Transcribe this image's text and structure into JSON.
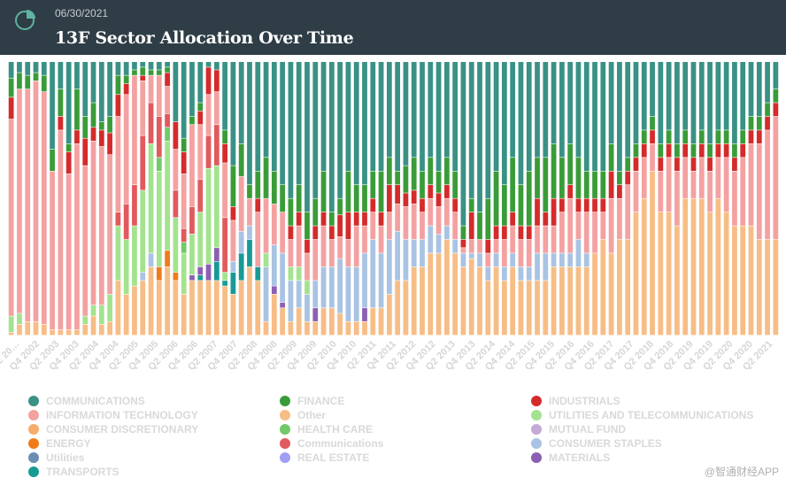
{
  "header": {
    "date": "06/30/2021",
    "title": "13F Sector Allocation Over Time"
  },
  "watermark": "@智通财经APP",
  "chart_data": {
    "type": "bar",
    "stacked": true,
    "normalized": true,
    "title": "13F Sector Allocation Over Time",
    "x_tick_labels": [
      "Q2 20…",
      "Q4 2002",
      "Q2 2003",
      "Q4 2003",
      "Q2 2004",
      "Q4 2004",
      "Q2 2005",
      "Q4 2005",
      "Q2 2006",
      "Q4 2006",
      "Q2 2007",
      "Q4 2007",
      "Q2 2008",
      "Q4 2008",
      "Q2 2009",
      "Q4 2009",
      "Q2 2010",
      "Q4 2010",
      "Q2 2011",
      "Q4 2011",
      "Q2 2012",
      "Q4 2012",
      "Q2 2013",
      "Q4 2013",
      "Q2 2014",
      "Q4 2014",
      "Q2 2015",
      "Q4 2015",
      "Q2 2016",
      "Q4 2016",
      "Q2 2017",
      "Q4 2017",
      "Q2 2018",
      "Q4 2018",
      "Q2 2019",
      "Q4 2019",
      "Q2 2020",
      "Q4 2020",
      "Q2 2021"
    ],
    "series_order": [
      "other",
      "energy",
      "transports",
      "materials",
      "real_estate",
      "consumer_staples",
      "utilities_tel",
      "health",
      "comms_red",
      "info_tech",
      "industrials",
      "finance",
      "communications"
    ],
    "series": [
      {
        "key": "communications",
        "name": "COMMUNICATIONS",
        "color": "#3a9185"
      },
      {
        "key": "finance",
        "name": "FINANCE",
        "color": "#3a9c38"
      },
      {
        "key": "industrials",
        "name": "INDUSTRIALS",
        "color": "#d42b2b"
      },
      {
        "key": "info_tech",
        "name": "INFORMATION TECHNOLOGY",
        "color": "#f4a1a1"
      },
      {
        "key": "other",
        "name": "Other",
        "color": "#f7bd86"
      },
      {
        "key": "utilities_tel",
        "name": "UTILITIES AND TELECOMMUNICATIONS",
        "color": "#a3e38f"
      },
      {
        "key": "consumer_discretionary",
        "name": "CONSUMER DISCRETIONARY",
        "color": "#f5ae6a"
      },
      {
        "key": "health",
        "name": "HEALTH CARE",
        "color": "#72c96a"
      },
      {
        "key": "mutual_fund",
        "name": "MUTUAL FUND",
        "color": "#c5a9d6"
      },
      {
        "key": "energy",
        "name": "ENERGY",
        "color": "#ef7c1a"
      },
      {
        "key": "comms_red",
        "name": "Communications",
        "color": "#e05a5e"
      },
      {
        "key": "consumer_staples",
        "name": "CONSUMER STAPLES",
        "color": "#a9c3e3"
      },
      {
        "key": "utilities",
        "name": "Utilities",
        "color": "#6b8eb3"
      },
      {
        "key": "real_estate",
        "name": "REAL ESTATE",
        "color": "#a09ef5"
      },
      {
        "key": "materials",
        "name": "MATERIALS",
        "color": "#8c5fb3"
      },
      {
        "key": "transports",
        "name": "TRANSPORTS",
        "color": "#179a96"
      }
    ],
    "bars": [
      {
        "communications": 6,
        "finance": 7,
        "industrials": 8,
        "info_tech": 72,
        "other": 1,
        "utilities_tel": 6
      },
      {
        "communications": 4,
        "finance": 6,
        "info_tech": 82,
        "other": 4,
        "utilities_tel": 4
      },
      {
        "communications": 5,
        "finance": 5,
        "info_tech": 85,
        "other": 5
      },
      {
        "communications": 4,
        "finance": 3,
        "info_tech": 88,
        "other": 5
      },
      {
        "communications": 5,
        "finance": 6,
        "info_tech": 85,
        "other": 4
      },
      {
        "communications": 32,
        "finance": 8,
        "info_tech": 58,
        "other": 2
      },
      {
        "communications": 10,
        "finance": 10,
        "industrials": 5,
        "info_tech": 73,
        "other": 2
      },
      {
        "communications": 30,
        "finance": 3,
        "industrials": 8,
        "info_tech": 57,
        "other": 2
      },
      {
        "communications": 10,
        "finance": 15,
        "industrials": 5,
        "info_tech": 68,
        "other": 2
      },
      {
        "communications": 20,
        "finance": 8,
        "industrials": 10,
        "info_tech": 55,
        "other": 4,
        "utilities_tel": 3
      },
      {
        "communications": 15,
        "finance": 9,
        "industrials": 5,
        "info_tech": 60,
        "other": 7,
        "utilities_tel": 4
      },
      {
        "communications": 22,
        "finance": 3,
        "industrials": 6,
        "info_tech": 58,
        "other": 4,
        "utilities_tel": 7
      },
      {
        "communications": 20,
        "finance": 6,
        "industrials": 8,
        "info_tech": 51,
        "other": 5,
        "utilities_tel": 10
      },
      {
        "communications": 5,
        "finance": 7,
        "industrials": 8,
        "info_tech": 35,
        "other": 20,
        "utilities_tel": 20,
        "comms_red": 5
      },
      {
        "communications": 5,
        "finance": 3,
        "industrials": 4,
        "info_tech": 40,
        "other": 15,
        "utilities_tel": 20,
        "comms_red": 13
      },
      {
        "communications": 3,
        "finance": 2,
        "info_tech": 40,
        "other": 18,
        "utilities_tel": 22,
        "comms_red": 15
      },
      {
        "communications": 2,
        "finance": 3,
        "industrials": 2,
        "info_tech": 20,
        "other": 20,
        "utilities_tel": 30,
        "comms_red": 20,
        "consumer_staples": 3
      },
      {
        "communications": 3,
        "finance": 2,
        "info_tech": 10,
        "other": 25,
        "utilities_tel": 40,
        "comms_red": 15,
        "consumer_staples": 5
      },
      {
        "communications": 3,
        "finance": 2,
        "info_tech": 15,
        "other": 20,
        "utilities_tel": 35,
        "health": 5,
        "comms_red": 15,
        "energy": 5
      },
      {
        "communications": 2,
        "finance": 2,
        "industrials": 5,
        "info_tech": 10,
        "other": 25,
        "utilities_tel": 40,
        "health": 5,
        "comms_red": 5,
        "energy": 6
      },
      {
        "communications": 22,
        "industrials": 10,
        "info_tech": 15,
        "other": 20,
        "utilities_tel": 20,
        "comms_red": 10,
        "energy": 3
      },
      {
        "communications": 28,
        "finance": 5,
        "industrials": 8,
        "info_tech": 20,
        "other": 15,
        "utilities_tel": 15,
        "health": 4,
        "comms_red": 5
      },
      {
        "communications": 20,
        "finance": 3,
        "info_tech": 30,
        "other": 20,
        "utilities_tel": 15,
        "comms_red": 10,
        "materials": 2
      },
      {
        "communications": 15,
        "finance": 3,
        "industrials": 5,
        "info_tech": 20,
        "other": 20,
        "utilities_tel": 20,
        "comms_red": 12,
        "materials": 3,
        "transports": 2
      },
      {
        "communications": 2,
        "industrials": 10,
        "info_tech": 15,
        "other": 20,
        "utilities_tel": 35,
        "comms_red": 12,
        "materials": 6
      },
      {
        "communications": 3,
        "industrials": 8,
        "info_tech": 12,
        "other": 20,
        "utilities_tel": 30,
        "comms_red": 15,
        "transports": 7,
        "materials": 5
      },
      {
        "communications": 25,
        "finance": 5,
        "industrials": 7,
        "info_tech": 20,
        "other": 18,
        "utilities_tel": 3,
        "comms_red": 20,
        "transports": 2
      },
      {
        "communications": 38,
        "finance": 15,
        "industrials": 5,
        "info_tech": 15,
        "other": 15,
        "consumer_staples": 4,
        "transports": 8
      },
      {
        "communications": 30,
        "finance": 12,
        "info_tech": 20,
        "other": 20,
        "consumer_staples": 8,
        "transports": 10
      },
      {
        "communications": 45,
        "finance": 5,
        "info_tech": 10,
        "other": 25,
        "consumer_staples": 5,
        "transports": 10
      },
      {
        "communications": 40,
        "finance": 10,
        "industrials": 5,
        "info_tech": 20,
        "other": 20,
        "transports": 5
      },
      {
        "communications": 35,
        "finance": 15,
        "info_tech": 20,
        "other": 5,
        "utilities_tel": 5,
        "consumer_staples": 20
      },
      {
        "communications": 40,
        "finance": 12,
        "info_tech": 15,
        "other": 15,
        "consumer_staples": 15,
        "materials": 3
      },
      {
        "communications": 45,
        "finance": 10,
        "info_tech": 15,
        "other": 10,
        "consumer_staples": 18,
        "materials": 2
      },
      {
        "communications": 50,
        "finance": 10,
        "industrials": 5,
        "info_tech": 10,
        "other": 5,
        "utilities_tel": 5,
        "consumer_staples": 15
      },
      {
        "communications": 45,
        "finance": 10,
        "industrials": 5,
        "info_tech": 15,
        "other": 10,
        "utilities_tel": 5,
        "consumer_staples": 10
      },
      {
        "communications": 55,
        "finance": 10,
        "industrials": 5,
        "info_tech": 10,
        "other": 5,
        "utilities_tel": 5,
        "consumer_staples": 10
      },
      {
        "communications": 50,
        "finance": 10,
        "industrials": 5,
        "info_tech": 15,
        "other": 5,
        "consumer_staples": 10,
        "materials": 5
      },
      {
        "communications": 40,
        "finance": 15,
        "industrials": 5,
        "info_tech": 15,
        "other": 10,
        "consumer_staples": 15
      },
      {
        "communications": 55,
        "finance": 5,
        "industrials": 5,
        "info_tech": 10,
        "other": 10,
        "consumer_staples": 15
      },
      {
        "communications": 50,
        "finance": 6,
        "industrials": 8,
        "info_tech": 8,
        "other": 8,
        "consumer_staples": 20
      },
      {
        "communications": 40,
        "finance": 15,
        "industrials": 10,
        "info_tech": 10,
        "other": 5,
        "consumer_staples": 20
      },
      {
        "communications": 45,
        "finance": 10,
        "industrials": 5,
        "info_tech": 15,
        "other": 5,
        "consumer_staples": 20
      },
      {
        "communications": 45,
        "finance": 10,
        "industrials": 5,
        "info_tech": 10,
        "other": 5,
        "consumer_staples": 20,
        "materials": 5
      },
      {
        "communications": 40,
        "finance": 10,
        "industrials": 5,
        "info_tech": 10,
        "other": 10,
        "consumer_staples": 25
      },
      {
        "communications": 40,
        "finance": 15,
        "industrials": 5,
        "info_tech": 10,
        "other": 10,
        "consumer_staples": 20
      },
      {
        "communications": 35,
        "finance": 10,
        "industrials": 10,
        "info_tech": 10,
        "other": 15,
        "consumer_staples": 20
      },
      {
        "communications": 40,
        "finance": 5,
        "industrials": 7,
        "info_tech": 10,
        "other": 20,
        "consumer_staples": 18
      },
      {
        "communications": 38,
        "finance": 10,
        "industrials": 5,
        "info_tech": 12,
        "other": 20,
        "consumer_staples": 15
      },
      {
        "communications": 35,
        "finance": 12,
        "industrials": 5,
        "info_tech": 13,
        "other": 25,
        "consumer_staples": 10
      },
      {
        "communications": 40,
        "finance": 10,
        "industrials": 5,
        "info_tech": 10,
        "other": 25,
        "consumer_staples": 10
      },
      {
        "communications": 35,
        "finance": 10,
        "industrials": 5,
        "info_tech": 10,
        "other": 30,
        "consumer_staples": 10
      },
      {
        "communications": 40,
        "finance": 8,
        "industrials": 5,
        "info_tech": 10,
        "other": 30,
        "consumer_staples": 7
      },
      {
        "communications": 35,
        "finance": 10,
        "industrials": 5,
        "info_tech": 10,
        "other": 35,
        "consumer_staples": 5
      },
      {
        "communications": 40,
        "finance": 10,
        "industrials": 5,
        "info_tech": 10,
        "other": 30,
        "consumer_staples": 5
      },
      {
        "communications": 60,
        "finance": 5,
        "industrials": 3,
        "info_tech": 2,
        "other": 25,
        "consumer_staples": 5
      },
      {
        "communications": 50,
        "finance": 5,
        "industrials": 10,
        "info_tech": 5,
        "other": 28,
        "consumer_staples": 2
      },
      {
        "communications": 55,
        "finance": 10,
        "info_tech": 5,
        "other": 25,
        "consumer_staples": 5
      },
      {
        "communications": 50,
        "finance": 15,
        "industrials": 5,
        "info_tech": 5,
        "other": 20,
        "consumer_staples": 5
      },
      {
        "communications": 40,
        "finance": 20,
        "industrials": 5,
        "info_tech": 5,
        "other": 25,
        "consumer_staples": 5
      },
      {
        "communications": 45,
        "finance": 15,
        "industrials": 5,
        "info_tech": 10,
        "other": 20,
        "consumer_staples": 5
      },
      {
        "communications": 35,
        "finance": 20,
        "industrials": 5,
        "info_tech": 10,
        "other": 25,
        "consumer_staples": 5
      },
      {
        "communications": 45,
        "finance": 15,
        "industrials": 5,
        "info_tech": 10,
        "other": 20,
        "consumer_staples": 5
      },
      {
        "communications": 40,
        "finance": 20,
        "industrials": 5,
        "info_tech": 10,
        "other": 20,
        "consumer_staples": 5
      },
      {
        "communications": 35,
        "finance": 15,
        "industrials": 10,
        "info_tech": 10,
        "other": 20,
        "consumer_staples": 10
      },
      {
        "communications": 35,
        "finance": 20,
        "industrials": 5,
        "info_tech": 10,
        "other": 20,
        "consumer_staples": 10
      },
      {
        "communications": 30,
        "finance": 20,
        "industrials": 10,
        "info_tech": 10,
        "other": 25,
        "consumer_staples": 5
      },
      {
        "communications": 35,
        "finance": 15,
        "industrials": 5,
        "info_tech": 15,
        "other": 25,
        "consumer_staples": 5
      },
      {
        "communications": 30,
        "finance": 15,
        "industrials": 5,
        "info_tech": 20,
        "other": 25,
        "consumer_staples": 5
      },
      {
        "communications": 35,
        "finance": 15,
        "industrials": 5,
        "info_tech": 10,
        "other": 25,
        "consumer_staples": 10
      },
      {
        "communications": 40,
        "finance": 10,
        "industrials": 5,
        "info_tech": 15,
        "other": 25,
        "consumer_staples": 5
      },
      {
        "communications": 40,
        "finance": 10,
        "industrials": 5,
        "info_tech": 15,
        "other": 30
      },
      {
        "communications": 40,
        "finance": 10,
        "industrials": 5,
        "info_tech": 10,
        "other": 35
      },
      {
        "communications": 30,
        "finance": 10,
        "industrials": 10,
        "info_tech": 20,
        "other": 30
      },
      {
        "communications": 40,
        "finance": 5,
        "industrials": 5,
        "info_tech": 15,
        "other": 35
      },
      {
        "communications": 35,
        "finance": 5,
        "industrials": 5,
        "info_tech": 20,
        "other": 35
      },
      {
        "communications": 30,
        "finance": 5,
        "industrials": 5,
        "info_tech": 15,
        "other": 45
      },
      {
        "communications": 25,
        "finance": 5,
        "industrials": 5,
        "info_tech": 15,
        "other": 50
      },
      {
        "communications": 20,
        "finance": 5,
        "industrials": 5,
        "info_tech": 10,
        "other": 60
      },
      {
        "communications": 30,
        "finance": 5,
        "industrials": 5,
        "info_tech": 15,
        "other": 45
      },
      {
        "communications": 25,
        "finance": 5,
        "industrials": 5,
        "info_tech": 20,
        "other": 45
      },
      {
        "communications": 30,
        "finance": 5,
        "industrials": 5,
        "info_tech": 20,
        "other": 40
      },
      {
        "communications": 25,
        "finance": 5,
        "industrials": 5,
        "info_tech": 15,
        "other": 50
      },
      {
        "communications": 30,
        "finance": 5,
        "industrials": 5,
        "info_tech": 10,
        "other": 50
      },
      {
        "communications": 25,
        "finance": 5,
        "industrials": 5,
        "info_tech": 15,
        "other": 50
      },
      {
        "communications": 30,
        "finance": 5,
        "industrials": 5,
        "info_tech": 15,
        "other": 45
      },
      {
        "communications": 25,
        "finance": 5,
        "industrials": 5,
        "info_tech": 15,
        "other": 50
      },
      {
        "communications": 25,
        "finance": 5,
        "industrials": 5,
        "info_tech": 20,
        "other": 45
      },
      {
        "communications": 30,
        "finance": 5,
        "industrials": 5,
        "info_tech": 20,
        "other": 40
      },
      {
        "communications": 25,
        "finance": 5,
        "industrials": 5,
        "info_tech": 25,
        "other": 40
      },
      {
        "communications": 20,
        "finance": 5,
        "industrials": 5,
        "info_tech": 30,
        "other": 40
      },
      {
        "communications": 20,
        "finance": 5,
        "industrials": 5,
        "info_tech": 35,
        "other": 35
      },
      {
        "communications": 15,
        "finance": 5,
        "industrials": 5,
        "info_tech": 40,
        "other": 35
      },
      {
        "communications": 10,
        "finance": 5,
        "industrials": 5,
        "info_tech": 45,
        "other": 35
      }
    ]
  },
  "legend": [
    {
      "label": "COMMUNICATIONS",
      "color": "#3a9185"
    },
    {
      "label": "FINANCE",
      "color": "#3a9c38"
    },
    {
      "label": "INDUSTRIALS",
      "color": "#d42b2b"
    },
    {
      "label": "INFORMATION TECHNOLOGY",
      "color": "#f4a1a1"
    },
    {
      "label": "Other",
      "color": "#f7bd86"
    },
    {
      "label": "UTILITIES AND TELECOMMUNICATIONS",
      "color": "#a3e38f"
    },
    {
      "label": "CONSUMER DISCRETIONARY",
      "color": "#f5ae6a"
    },
    {
      "label": "HEALTH CARE",
      "color": "#72c96a"
    },
    {
      "label": "MUTUAL FUND",
      "color": "#c5a9d6"
    },
    {
      "label": "ENERGY",
      "color": "#ef7c1a"
    },
    {
      "label": "Communications",
      "color": "#e05a5e"
    },
    {
      "label": "CONSUMER STAPLES",
      "color": "#a9c3e3"
    },
    {
      "label": "Utilities",
      "color": "#6b8eb3"
    },
    {
      "label": "REAL ESTATE",
      "color": "#a09ef5"
    },
    {
      "label": "MATERIALS",
      "color": "#8c5fb3"
    },
    {
      "label": "TRANSPORTS",
      "color": "#179a96"
    }
  ]
}
